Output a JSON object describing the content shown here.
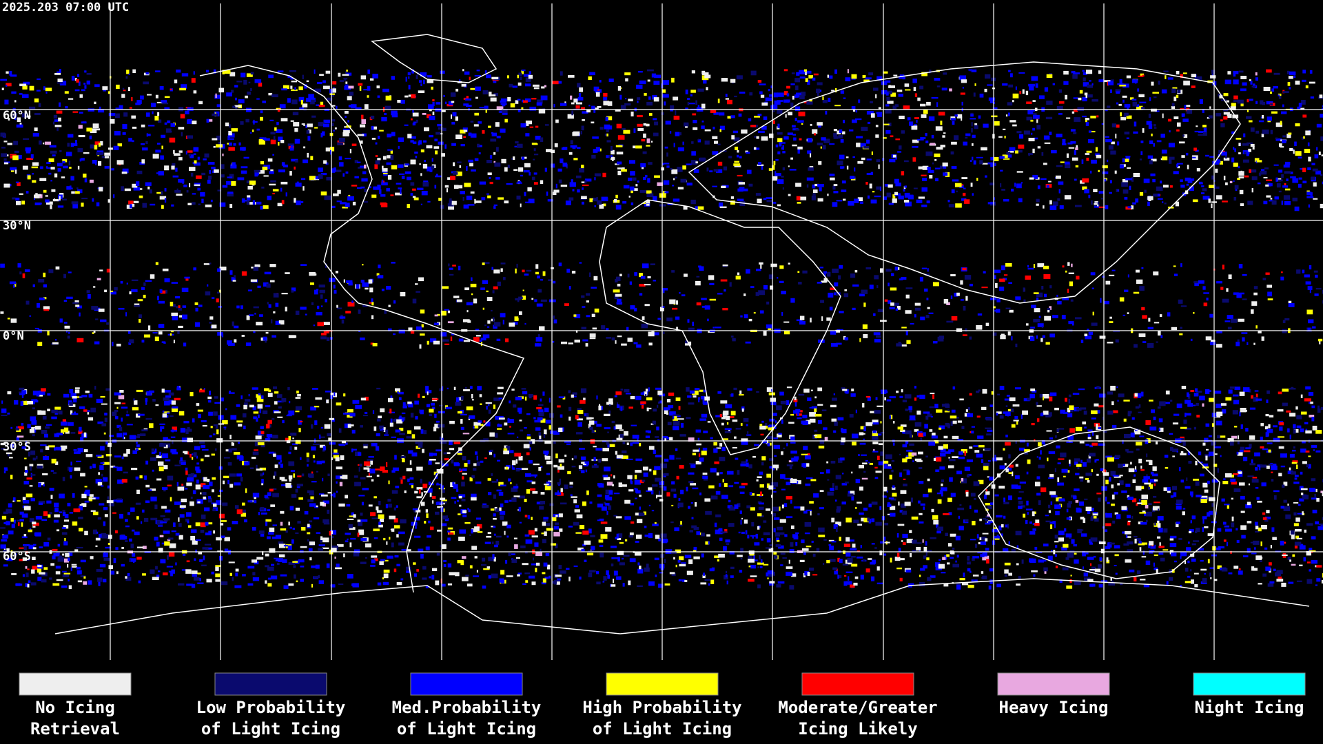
{
  "header": {
    "title": "2025.203 07:00 UTC"
  },
  "map": {
    "latitude_labels": [
      "60°N",
      "30°N",
      "0°N",
      "30°S",
      "60°S"
    ]
  },
  "legend": {
    "items": [
      {
        "lines": [
          "No Icing",
          "Retrieval"
        ],
        "color": "#eeeeee"
      },
      {
        "lines": [
          "Low Probability",
          "of Light Icing"
        ],
        "color": "#0a0a6e"
      },
      {
        "lines": [
          "Med.Probability",
          "of Light Icing"
        ],
        "color": "#0000ff"
      },
      {
        "lines": [
          "High Probability",
          "of Light Icing"
        ],
        "color": "#ffff00"
      },
      {
        "lines": [
          "Moderate/Greater",
          "Icing Likely"
        ],
        "color": "#ff0000"
      },
      {
        "lines": [
          "Heavy Icing"
        ],
        "color": "#e8a8e0"
      },
      {
        "lines": [
          "Night Icing"
        ],
        "color": "#00ffff"
      }
    ]
  }
}
